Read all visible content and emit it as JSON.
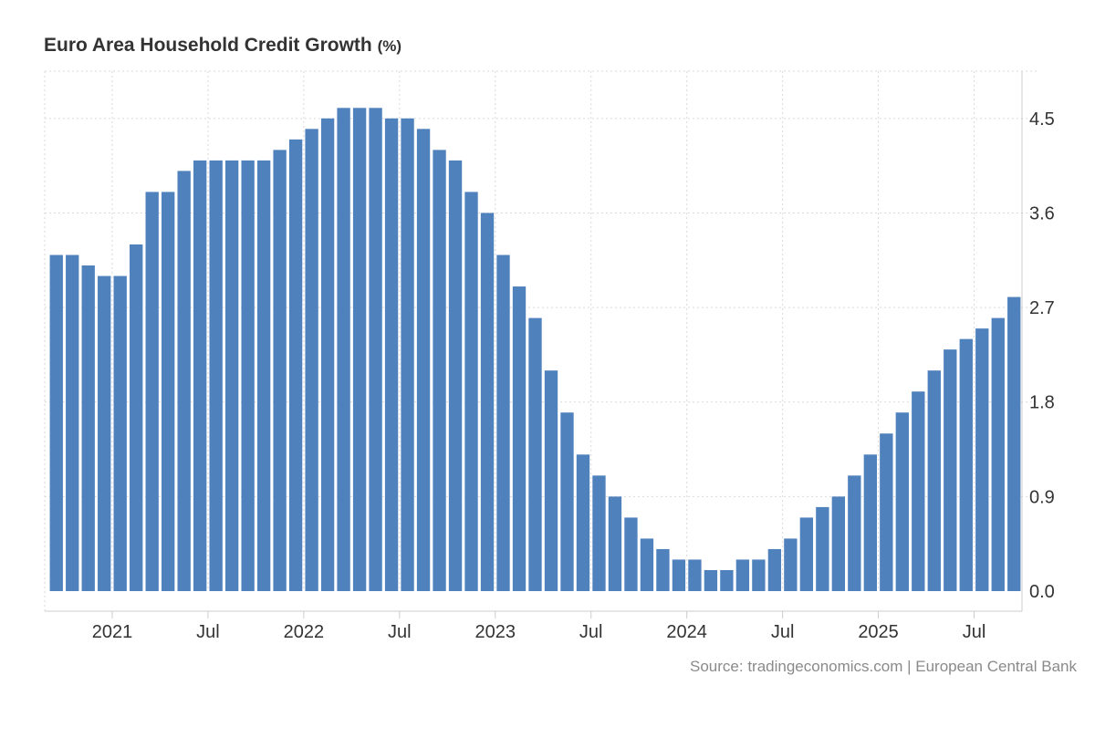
{
  "chart_data": {
    "type": "bar",
    "title": "Euro Area Household Credit Growth",
    "unit": "(%)",
    "xlabel": "",
    "ylabel": "",
    "ylim": [
      0,
      4.95
    ],
    "yticks": [
      "0.0",
      "0.9",
      "1.8",
      "2.7",
      "3.6",
      "4.5"
    ],
    "ytick_values": [
      0,
      0.9,
      1.8,
      2.7,
      3.6,
      4.5
    ],
    "grid": true,
    "bar_color": "#4f81bd",
    "x_tick_labels": [
      {
        "label": "2021",
        "index": 3.5
      },
      {
        "label": "Jul",
        "index": 9.5
      },
      {
        "label": "2022",
        "index": 15.5
      },
      {
        "label": "Jul",
        "index": 21.5
      },
      {
        "label": "2023",
        "index": 27.5
      },
      {
        "label": "Jul",
        "index": 33.5
      },
      {
        "label": "2024",
        "index": 39.5
      },
      {
        "label": "Jul",
        "index": 45.5
      },
      {
        "label": "2025",
        "index": 51.5
      },
      {
        "label": "Jul",
        "index": 57.5
      }
    ],
    "categories": [
      "2020-09",
      "2020-10",
      "2020-11",
      "2020-12",
      "2021-01",
      "2021-02",
      "2021-03",
      "2021-04",
      "2021-05",
      "2021-06",
      "2021-07",
      "2021-08",
      "2021-09",
      "2021-10",
      "2021-11",
      "2021-12",
      "2022-01",
      "2022-02",
      "2022-03",
      "2022-04",
      "2022-05",
      "2022-06",
      "2022-07",
      "2022-08",
      "2022-09",
      "2022-10",
      "2022-11",
      "2022-12",
      "2023-01",
      "2023-02",
      "2023-03",
      "2023-04",
      "2023-05",
      "2023-06",
      "2023-07",
      "2023-08",
      "2023-09",
      "2023-10",
      "2023-11",
      "2023-12",
      "2024-01",
      "2024-02",
      "2024-03",
      "2024-04",
      "2024-05",
      "2024-06",
      "2024-07",
      "2024-08",
      "2024-09",
      "2024-10",
      "2024-11",
      "2024-12",
      "2025-01",
      "2025-02",
      "2025-03",
      "2025-04",
      "2025-05",
      "2025-06",
      "2025-07",
      "2025-08",
      "2025-09"
    ],
    "values": [
      3.2,
      3.2,
      3.1,
      3.0,
      3.0,
      3.3,
      3.8,
      3.8,
      4.0,
      4.1,
      4.1,
      4.1,
      4.1,
      4.1,
      4.2,
      4.3,
      4.4,
      4.5,
      4.6,
      4.6,
      4.6,
      4.5,
      4.5,
      4.4,
      4.2,
      4.1,
      3.8,
      3.6,
      3.2,
      2.9,
      2.6,
      2.1,
      1.7,
      1.3,
      1.1,
      0.9,
      0.7,
      0.5,
      0.4,
      0.3,
      0.3,
      0.2,
      0.2,
      0.3,
      0.3,
      0.4,
      0.5,
      0.7,
      0.8,
      0.9,
      1.1,
      1.3,
      1.5,
      1.7,
      1.9,
      2.1,
      2.3,
      2.4,
      2.5,
      2.6,
      2.8
    ]
  },
  "source": "Source: tradingeconomics.com | European Central Bank"
}
